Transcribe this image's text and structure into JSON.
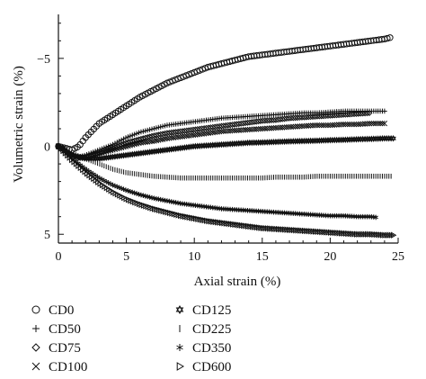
{
  "chart_data": {
    "type": "scatter",
    "xlabel": "Axial strain (%)",
    "ylabel": "Volumetric strain (%)",
    "xlim": [
      0,
      25
    ],
    "ylim": [
      5.5,
      -7.5
    ],
    "y_axis_inverted": true,
    "xticks": [
      0,
      5,
      10,
      15,
      20,
      25
    ],
    "yticks": [
      5,
      0,
      -5
    ],
    "ytick_labels": [
      "5",
      "0",
      "−5"
    ],
    "grid": false,
    "legend_position": "bottom",
    "series": [
      {
        "name": "CD0",
        "marker": "circle",
        "points": [
          [
            0,
            0
          ],
          [
            1,
            0.2
          ],
          [
            1.5,
            0
          ],
          [
            2,
            -0.5
          ],
          [
            3,
            -1.3
          ],
          [
            4,
            -1.8
          ],
          [
            5,
            -2.3
          ],
          [
            6,
            -2.8
          ],
          [
            7,
            -3.2
          ],
          [
            8,
            -3.6
          ],
          [
            9,
            -3.9
          ],
          [
            10,
            -4.2
          ],
          [
            11,
            -4.5
          ],
          [
            12,
            -4.7
          ],
          [
            13,
            -4.9
          ],
          [
            14,
            -5.1
          ],
          [
            15,
            -5.2
          ],
          [
            16,
            -5.3
          ],
          [
            17,
            -5.4
          ],
          [
            18,
            -5.5
          ],
          [
            19,
            -5.6
          ],
          [
            20,
            -5.7
          ],
          [
            21,
            -5.8
          ],
          [
            22,
            -5.9
          ],
          [
            23,
            -6.0
          ],
          [
            24,
            -6.1
          ],
          [
            24.5,
            -6.2
          ]
        ]
      },
      {
        "name": "CD50",
        "marker": "plus",
        "points": [
          [
            0,
            0
          ],
          [
            1,
            0.5
          ],
          [
            1.5,
            0.6
          ],
          [
            2,
            0.5
          ],
          [
            3,
            0.2
          ],
          [
            4,
            -0.1
          ],
          [
            5,
            -0.5
          ],
          [
            6,
            -0.8
          ],
          [
            7,
            -1.0
          ],
          [
            8,
            -1.2
          ],
          [
            9,
            -1.3
          ],
          [
            10,
            -1.4
          ],
          [
            11,
            -1.5
          ],
          [
            12,
            -1.6
          ],
          [
            13,
            -1.65
          ],
          [
            14,
            -1.7
          ],
          [
            15,
            -1.75
          ],
          [
            16,
            -1.8
          ],
          [
            17,
            -1.85
          ],
          [
            18,
            -1.9
          ],
          [
            19,
            -1.9
          ],
          [
            20,
            -1.95
          ],
          [
            21,
            -2.0
          ],
          [
            22,
            -2.0
          ],
          [
            23,
            -2.0
          ],
          [
            24,
            -2.0
          ]
        ]
      },
      {
        "name": "CD75",
        "marker": "diamond",
        "points": [
          [
            0,
            0
          ],
          [
            1,
            0.5
          ],
          [
            1.5,
            0.6
          ],
          [
            2,
            0.6
          ],
          [
            3,
            0.4
          ],
          [
            4,
            0.1
          ],
          [
            5,
            -0.2
          ],
          [
            6,
            -0.4
          ],
          [
            7,
            -0.6
          ],
          [
            8,
            -0.75
          ],
          [
            9,
            -0.85
          ],
          [
            10,
            -0.95
          ],
          [
            11,
            -1.05
          ],
          [
            12,
            -1.15
          ],
          [
            13,
            -1.25
          ],
          [
            14,
            -1.35
          ],
          [
            15,
            -1.45
          ],
          [
            16,
            -1.5
          ],
          [
            17,
            -1.6
          ],
          [
            18,
            -1.65
          ],
          [
            19,
            -1.7
          ],
          [
            20,
            -1.75
          ],
          [
            21,
            -1.8
          ],
          [
            22,
            -1.85
          ],
          [
            23,
            -1.9
          ]
        ]
      },
      {
        "name": "CD100",
        "marker": "cross",
        "points": [
          [
            0,
            0
          ],
          [
            1,
            0.5
          ],
          [
            1.5,
            0.7
          ],
          [
            2,
            0.6
          ],
          [
            3,
            0.4
          ],
          [
            4,
            0.2
          ],
          [
            5,
            0.0
          ],
          [
            6,
            -0.2
          ],
          [
            7,
            -0.3
          ],
          [
            8,
            -0.45
          ],
          [
            9,
            -0.55
          ],
          [
            10,
            -0.65
          ],
          [
            11,
            -0.75
          ],
          [
            12,
            -0.85
          ],
          [
            13,
            -0.9
          ],
          [
            14,
            -0.95
          ],
          [
            15,
            -1.0
          ],
          [
            16,
            -1.05
          ],
          [
            17,
            -1.1
          ],
          [
            18,
            -1.15
          ],
          [
            19,
            -1.2
          ],
          [
            20,
            -1.2
          ],
          [
            21,
            -1.25
          ],
          [
            22,
            -1.25
          ],
          [
            23,
            -1.3
          ],
          [
            24,
            -1.3
          ]
        ]
      },
      {
        "name": "CD125",
        "marker": "star6",
        "points": [
          [
            0,
            0
          ],
          [
            1,
            0.5
          ],
          [
            1.5,
            0.6
          ],
          [
            2,
            0.7
          ],
          [
            3,
            0.7
          ],
          [
            4,
            0.6
          ],
          [
            5,
            0.5
          ],
          [
            6,
            0.4
          ],
          [
            7,
            0.3
          ],
          [
            8,
            0.2
          ],
          [
            9,
            0.1
          ],
          [
            10,
            0.0
          ],
          [
            11,
            -0.05
          ],
          [
            12,
            -0.1
          ],
          [
            13,
            -0.15
          ],
          [
            14,
            -0.2
          ],
          [
            15,
            -0.22
          ],
          [
            16,
            -0.25
          ],
          [
            17,
            -0.28
          ],
          [
            18,
            -0.3
          ],
          [
            19,
            -0.32
          ],
          [
            20,
            -0.35
          ],
          [
            21,
            -0.37
          ],
          [
            22,
            -0.4
          ],
          [
            23,
            -0.42
          ],
          [
            24,
            -0.45
          ],
          [
            24.7,
            -0.45
          ]
        ]
      },
      {
        "name": "CD225",
        "marker": "vline",
        "points": [
          [
            0,
            0
          ],
          [
            1,
            0.4
          ],
          [
            2,
            0.7
          ],
          [
            3,
            1.0
          ],
          [
            4,
            1.3
          ],
          [
            5,
            1.5
          ],
          [
            6,
            1.6
          ],
          [
            7,
            1.7
          ],
          [
            8,
            1.75
          ],
          [
            9,
            1.8
          ],
          [
            10,
            1.8
          ],
          [
            11,
            1.8
          ],
          [
            12,
            1.8
          ],
          [
            13,
            1.8
          ],
          [
            14,
            1.8
          ],
          [
            15,
            1.8
          ],
          [
            16,
            1.75
          ],
          [
            17,
            1.75
          ],
          [
            18,
            1.75
          ],
          [
            19,
            1.7
          ],
          [
            20,
            1.7
          ],
          [
            21,
            1.7
          ],
          [
            22,
            1.7
          ],
          [
            23,
            1.7
          ],
          [
            24,
            1.7
          ],
          [
            24.5,
            1.7
          ]
        ]
      },
      {
        "name": "CD350",
        "marker": "asterisk",
        "points": [
          [
            0,
            0
          ],
          [
            1,
            0.7
          ],
          [
            2,
            1.3
          ],
          [
            3,
            1.8
          ],
          [
            4,
            2.2
          ],
          [
            5,
            2.5
          ],
          [
            6,
            2.75
          ],
          [
            7,
            2.95
          ],
          [
            8,
            3.1
          ],
          [
            9,
            3.25
          ],
          [
            10,
            3.35
          ],
          [
            11,
            3.45
          ],
          [
            12,
            3.55
          ],
          [
            13,
            3.6
          ],
          [
            14,
            3.65
          ],
          [
            15,
            3.7
          ],
          [
            16,
            3.75
          ],
          [
            17,
            3.8
          ],
          [
            18,
            3.85
          ],
          [
            19,
            3.9
          ],
          [
            20,
            3.95
          ],
          [
            21,
            3.95
          ],
          [
            22,
            4.0
          ],
          [
            23,
            4.0
          ],
          [
            23.5,
            4.05
          ]
        ]
      },
      {
        "name": "CD600",
        "marker": "triangle-right",
        "points": [
          [
            0,
            0
          ],
          [
            1,
            0.8
          ],
          [
            2,
            1.5
          ],
          [
            3,
            2.1
          ],
          [
            4,
            2.6
          ],
          [
            5,
            3.0
          ],
          [
            6,
            3.3
          ],
          [
            7,
            3.55
          ],
          [
            8,
            3.75
          ],
          [
            9,
            3.95
          ],
          [
            10,
            4.1
          ],
          [
            11,
            4.25
          ],
          [
            12,
            4.35
          ],
          [
            13,
            4.45
          ],
          [
            14,
            4.55
          ],
          [
            15,
            4.65
          ],
          [
            16,
            4.7
          ],
          [
            17,
            4.75
          ],
          [
            18,
            4.8
          ],
          [
            19,
            4.85
          ],
          [
            20,
            4.9
          ],
          [
            21,
            4.95
          ],
          [
            22,
            5.0
          ],
          [
            23,
            5.0
          ],
          [
            24,
            5.05
          ],
          [
            24.7,
            5.05
          ]
        ]
      }
    ]
  }
}
